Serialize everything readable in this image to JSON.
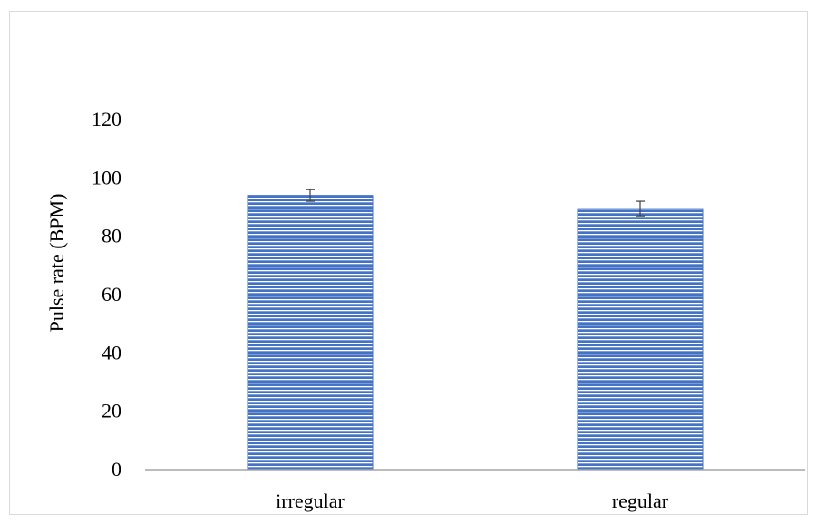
{
  "chart_data": {
    "type": "bar",
    "categories": [
      "irregular",
      "regular"
    ],
    "values": [
      94,
      89.5
    ],
    "error": [
      2,
      2.5
    ],
    "title": "",
    "xlabel": "",
    "ylabel": "Pulse rate (BPM)",
    "ylim": [
      0,
      120
    ],
    "yticks": [
      0,
      20,
      40,
      60,
      80,
      100,
      120
    ],
    "grid": false,
    "bar_color": "#4472c4",
    "bar_stripe_color": "#ffffff"
  }
}
